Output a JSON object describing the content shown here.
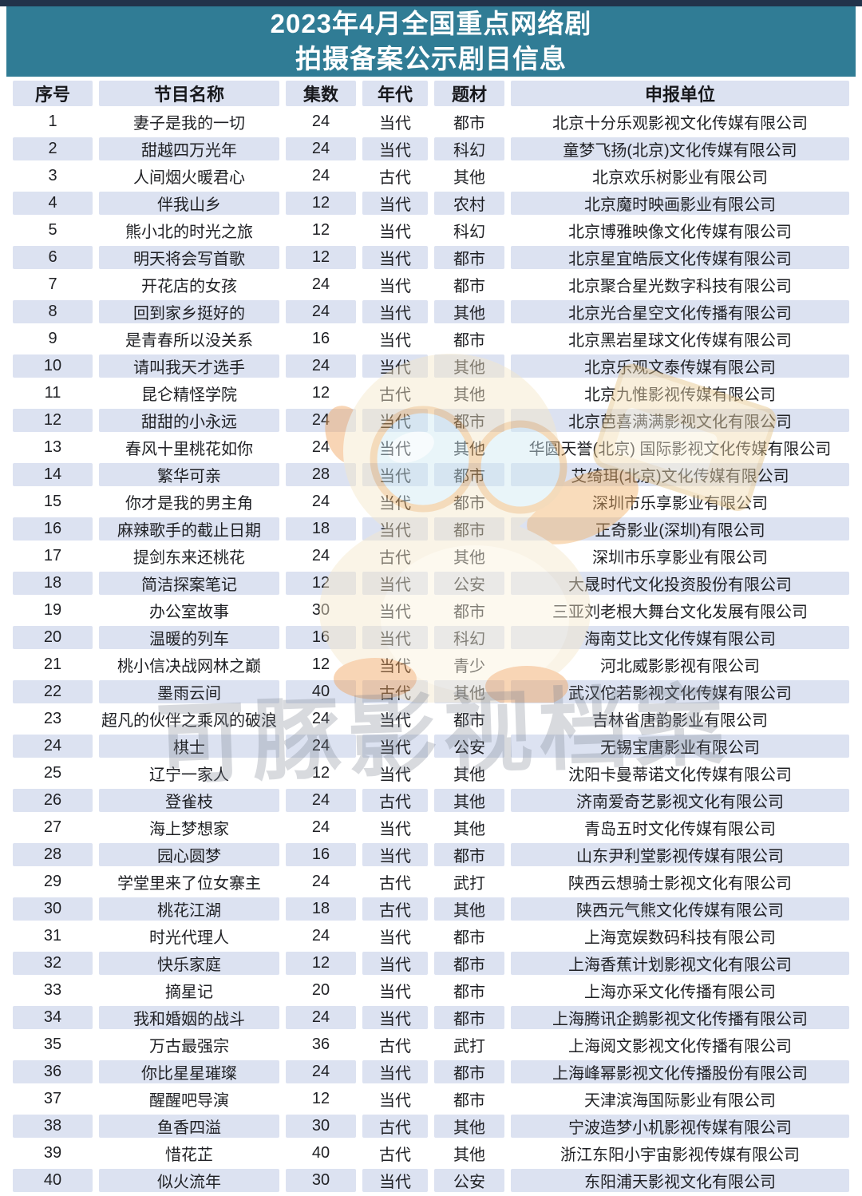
{
  "page": {
    "title_line1": "2023年4月全国重点网络剧",
    "title_line2": "拍摄备案公示剧目信息"
  },
  "colors": {
    "title_bg": "#307c95",
    "top_edge": "#22334a",
    "stripe": "#dce2f1",
    "text": "#1f2024"
  },
  "table": {
    "columns": [
      "序号",
      "节目名称",
      "集数",
      "年代",
      "题材",
      "申报单位"
    ],
    "rows": [
      [
        "1",
        "妻子是我的一切",
        "24",
        "当代",
        "都市",
        "北京十分乐观影视文化传媒有限公司"
      ],
      [
        "2",
        "甜越四万光年",
        "24",
        "当代",
        "科幻",
        "童梦飞扬(北京)文化传媒有限公司"
      ],
      [
        "3",
        "人间烟火暖君心",
        "24",
        "古代",
        "其他",
        "北京欢乐树影业有限公司"
      ],
      [
        "4",
        "伴我山乡",
        "12",
        "当代",
        "农村",
        "北京魔时映画影业有限公司"
      ],
      [
        "5",
        "熊小北的时光之旅",
        "12",
        "当代",
        "科幻",
        "北京博雅映像文化传媒有限公司"
      ],
      [
        "6",
        "明天将会写首歌",
        "12",
        "当代",
        "都市",
        "北京星宜皓辰文化传媒有限公司"
      ],
      [
        "7",
        "开花店的女孩",
        "24",
        "当代",
        "都市",
        "北京聚合星光数字科技有限公司"
      ],
      [
        "8",
        "回到家乡挺好的",
        "24",
        "当代",
        "其他",
        "北京光合星空文化传播有限公司"
      ],
      [
        "9",
        "是青春所以没关系",
        "16",
        "当代",
        "都市",
        "北京黑岩星球文化传媒有限公司"
      ],
      [
        "10",
        "请叫我天才选手",
        "24",
        "当代",
        "其他",
        "北京乐观文泰传媒有限公司"
      ],
      [
        "11",
        "昆仑精怪学院",
        "12",
        "古代",
        "其他",
        "北京九惟影视传媒有限公司"
      ],
      [
        "12",
        "甜甜的小永远",
        "24",
        "当代",
        "都市",
        "北京芭喜满满影视文化有限公司"
      ],
      [
        "13",
        "春风十里桃花如你",
        "24",
        "当代",
        "其他",
        "华圆天誉(北京) 国际影视文化传媒有限公司"
      ],
      [
        "14",
        "繁华可亲",
        "28",
        "当代",
        "都市",
        "艾绮珥(北京)文化传媒有限公司"
      ],
      [
        "15",
        "你才是我的男主角",
        "24",
        "当代",
        "都市",
        "深圳市乐享影业有限公司"
      ],
      [
        "16",
        "麻辣歌手的截止日期",
        "18",
        "当代",
        "都市",
        "正奇影业(深圳)有限公司"
      ],
      [
        "17",
        "提剑东来还桃花",
        "24",
        "古代",
        "其他",
        "深圳市乐享影业有限公司"
      ],
      [
        "18",
        "简洁探案笔记",
        "12",
        "当代",
        "公安",
        "大晟时代文化投资股份有限公司"
      ],
      [
        "19",
        "办公室故事",
        "30",
        "当代",
        "都市",
        "三亚刘老根大舞台文化发展有限公司"
      ],
      [
        "20",
        "温暖的列车",
        "16",
        "当代",
        "科幻",
        "海南艾比文化传媒有限公司"
      ],
      [
        "21",
        "桃小信决战网林之巅",
        "12",
        "当代",
        "青少",
        "河北威影影视有限公司"
      ],
      [
        "22",
        "墨雨云间",
        "40",
        "古代",
        "其他",
        "武汉佗若影视文化传媒有限公司"
      ],
      [
        "23",
        "超凡的伙伴之乘风的破浪",
        "24",
        "当代",
        "都市",
        "吉林省唐韵影业有限公司"
      ],
      [
        "24",
        "棋士",
        "24",
        "当代",
        "公安",
        "无锡宝唐影业有限公司"
      ],
      [
        "25",
        "辽宁一家人",
        "12",
        "当代",
        "其他",
        "沈阳卡曼蒂诺文化传媒有限公司"
      ],
      [
        "26",
        "登雀枝",
        "24",
        "古代",
        "其他",
        "济南爱奇艺影视文化有限公司"
      ],
      [
        "27",
        "海上梦想家",
        "24",
        "当代",
        "其他",
        "青岛五时文化传媒有限公司"
      ],
      [
        "28",
        "园心圆梦",
        "16",
        "当代",
        "都市",
        "山东尹利堂影视传媒有限公司"
      ],
      [
        "29",
        "学堂里来了位女寨主",
        "24",
        "古代",
        "武打",
        "陕西云想骑士影视文化有限公司"
      ],
      [
        "30",
        "桃花江湖",
        "18",
        "古代",
        "其他",
        "陕西元气熊文化传媒有限公司"
      ],
      [
        "31",
        "时光代理人",
        "24",
        "当代",
        "都市",
        "上海宽娱数码科技有限公司"
      ],
      [
        "32",
        "快乐家庭",
        "12",
        "当代",
        "都市",
        "上海香蕉计划影视文化有限公司"
      ],
      [
        "33",
        "摘星记",
        "20",
        "当代",
        "都市",
        "上海亦采文化传播有限公司"
      ],
      [
        "34",
        "我和婚姻的战斗",
        "24",
        "当代",
        "都市",
        "上海腾讯企鹅影视文化传播有限公司"
      ],
      [
        "35",
        "万古最强宗",
        "36",
        "古代",
        "武打",
        "上海阅文影视文化传播有限公司"
      ],
      [
        "36",
        "你比星星璀璨",
        "24",
        "当代",
        "都市",
        "上海峰幂影视文化传播股份有限公司"
      ],
      [
        "37",
        "醒醒吧导演",
        "12",
        "当代",
        "都市",
        "天津滨海国际影业有限公司"
      ],
      [
        "38",
        "鱼香四溢",
        "30",
        "古代",
        "其他",
        "宁波造梦小机影视传媒有限公司"
      ],
      [
        "39",
        "惜花芷",
        "40",
        "古代",
        "其他",
        "浙江东阳小宇宙影视传媒有限公司"
      ],
      [
        "40",
        "似火流年",
        "30",
        "当代",
        "公安",
        "东阳浦天影视文化有限公司"
      ]
    ]
  },
  "watermark": {
    "text": "可豚影视档案"
  }
}
